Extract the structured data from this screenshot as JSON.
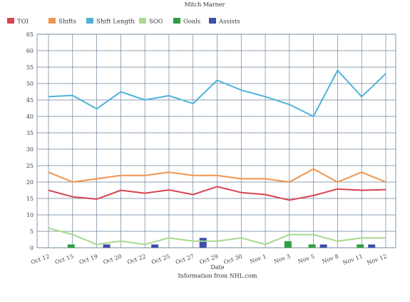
{
  "chart_data": {
    "type": "line",
    "title": "Mitch Marner",
    "xlabel": "Date",
    "source_note": "Information from NHL.com",
    "ylim": [
      0,
      65
    ],
    "y_ticks": [
      0,
      5,
      10,
      15,
      20,
      25,
      30,
      35,
      40,
      45,
      50,
      55,
      60,
      65
    ],
    "categories": [
      "Oct 12",
      "Oct 15",
      "Oct 19",
      "Oct 20",
      "Oct 22",
      "Oct 25",
      "Oct 27",
      "Oct 29",
      "Oct 30",
      "Nov 1",
      "Nov 3",
      "Nov 5",
      "Nov 8",
      "Nov 11",
      "Nov 12"
    ],
    "grid": true,
    "legend_placement": "top-left",
    "series": [
      {
        "name": "TOI",
        "kind": "line",
        "color": "#d94452",
        "values": [
          17.5,
          15.5,
          14.8,
          17.5,
          16.6,
          17.6,
          16.2,
          18.6,
          16.8,
          16.2,
          14.5,
          15.9,
          17.9,
          17.5,
          17.7
        ]
      },
      {
        "name": "Shifts",
        "kind": "line",
        "color": "#f0944e",
        "values": [
          23,
          20,
          21,
          22,
          22,
          23,
          22,
          22,
          21,
          21,
          20,
          24,
          20,
          23,
          20
        ]
      },
      {
        "name": "Shift Length",
        "kind": "line",
        "color": "#4fb3d9",
        "values": [
          46.0,
          46.4,
          42.3,
          47.5,
          45.0,
          46.3,
          43.9,
          51.0,
          48.0,
          46.0,
          43.6,
          40.0,
          54.0,
          46.0,
          53.0
        ]
      },
      {
        "name": "SOG",
        "kind": "line",
        "color": "#a8d98c",
        "values": [
          6,
          4,
          1,
          2,
          1,
          3,
          2,
          2,
          3,
          1,
          4,
          4,
          2,
          3,
          3
        ]
      },
      {
        "name": "Goals",
        "kind": "bar",
        "color": "#2e9e44",
        "values": [
          0,
          1,
          0,
          0,
          0,
          0,
          0,
          0,
          0,
          0,
          2,
          1,
          0,
          1,
          0
        ]
      },
      {
        "name": "Assists",
        "kind": "bar",
        "color": "#3d4fa8",
        "values": [
          0,
          0,
          1,
          0,
          1,
          0,
          3,
          0,
          0,
          0,
          0,
          1,
          0,
          1,
          0
        ]
      }
    ]
  }
}
